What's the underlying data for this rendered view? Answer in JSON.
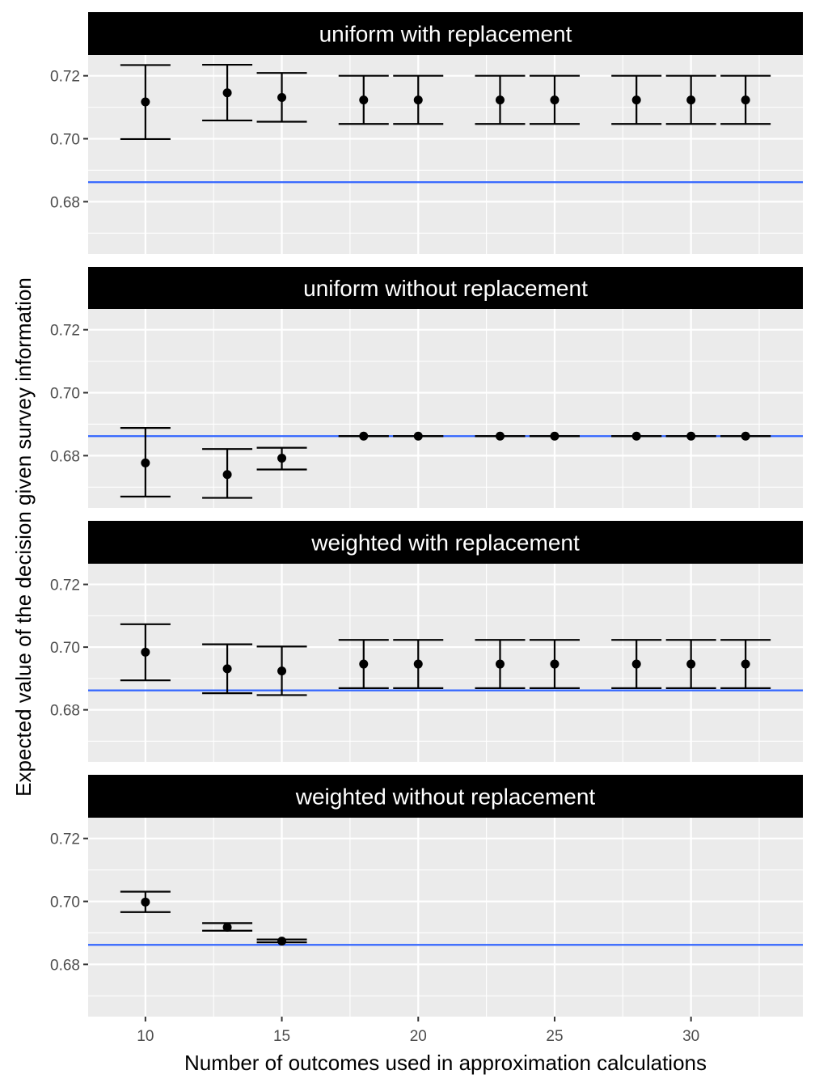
{
  "chart_data": {
    "type": "scatter",
    "xlabel": "Number of outcomes used in approximation calculations",
    "ylabel": "Expected value of the decision given survey information",
    "xlim": [
      7.9,
      34.1
    ],
    "ylim": [
      0.6634,
      0.7266
    ],
    "x_ticks": [
      10,
      15,
      20,
      25,
      30
    ],
    "x_tick_labels": [
      "10",
      "15",
      "20",
      "25",
      "30"
    ],
    "y_ticks": [
      0.68,
      0.7,
      0.72
    ],
    "y_tick_labels": [
      "0.68",
      "0.70",
      "0.72"
    ],
    "grid": true,
    "reference_line": {
      "y": 0.6862,
      "color": "#3366ff"
    },
    "x": [
      10,
      13,
      15,
      18,
      20,
      23,
      25,
      28,
      30,
      32
    ],
    "facets": [
      {
        "title": "uniform with replacement",
        "mean": [
          0.7117,
          0.7146,
          0.7131,
          0.7123,
          0.7123,
          0.7123,
          0.7123,
          0.7123,
          0.7123,
          0.7123
        ],
        "lower": [
          0.6999,
          0.7058,
          0.7054,
          0.7047,
          0.7047,
          0.7047,
          0.7047,
          0.7047,
          0.7047,
          0.7047
        ],
        "upper": [
          0.7234,
          0.7235,
          0.7209,
          0.72,
          0.72,
          0.72,
          0.72,
          0.72,
          0.72,
          0.72
        ]
      },
      {
        "title": "uniform without replacement",
        "mean": [
          0.6777,
          0.674,
          0.6792,
          0.6862,
          0.6862,
          0.6862,
          0.6862,
          0.6862,
          0.6862,
          0.6862
        ],
        "lower": [
          0.667,
          0.6666,
          0.6756,
          0.6862,
          0.6862,
          0.6862,
          0.6862,
          0.6862,
          0.6862,
          0.6862
        ],
        "upper": [
          0.6888,
          0.6821,
          0.6825,
          0.6862,
          0.6862,
          0.6862,
          0.6862,
          0.6862,
          0.6862,
          0.6862
        ]
      },
      {
        "title": "weighted with replacement",
        "mean": [
          0.6984,
          0.6931,
          0.6924,
          0.6946,
          0.6946,
          0.6946,
          0.6946,
          0.6946,
          0.6946,
          0.6946
        ],
        "lower": [
          0.6894,
          0.6853,
          0.6847,
          0.6869,
          0.6869,
          0.6869,
          0.6869,
          0.6869,
          0.6869,
          0.6869
        ],
        "upper": [
          0.7073,
          0.7009,
          0.7002,
          0.7023,
          0.7023,
          0.7023,
          0.7023,
          0.7023,
          0.7023,
          0.7023
        ]
      },
      {
        "title": "weighted without replacement",
        "mean": [
          0.6998,
          0.6918,
          0.6874
        ],
        "lower": [
          0.6966,
          0.6907,
          0.687
        ],
        "upper": [
          0.7031,
          0.6931,
          0.6879
        ]
      }
    ]
  }
}
